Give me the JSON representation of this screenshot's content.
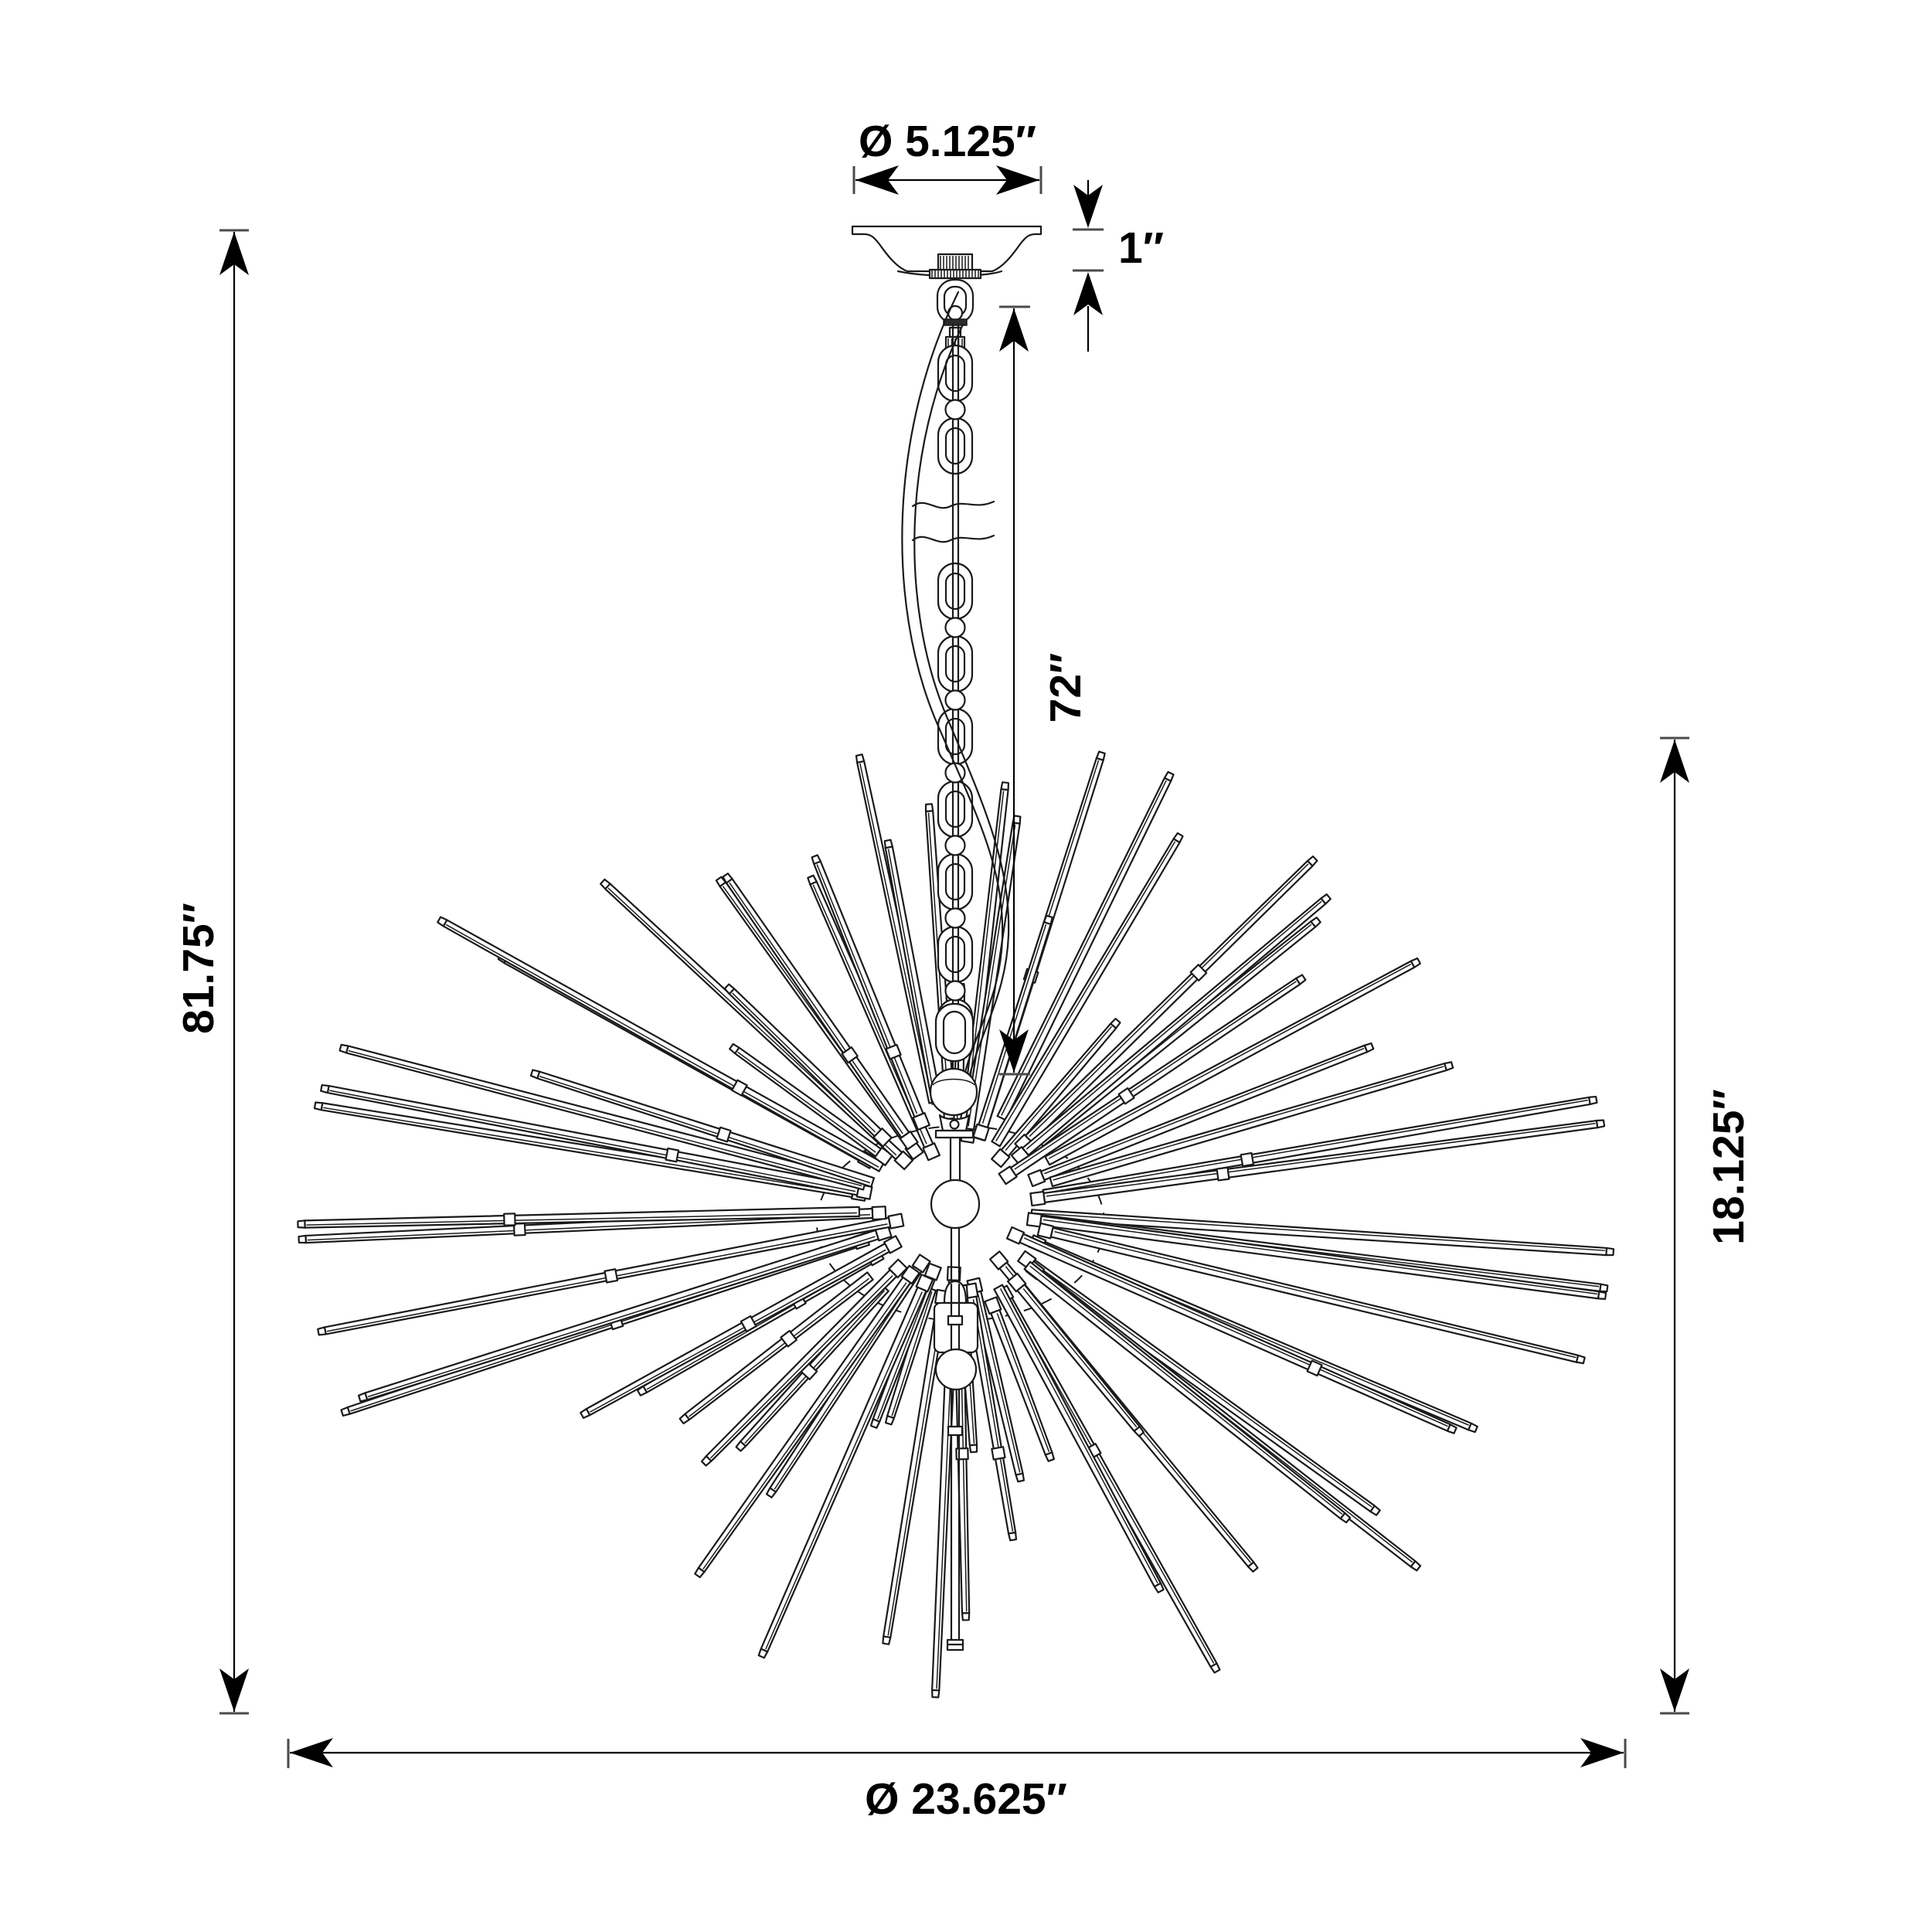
{
  "diagram": {
    "kind": "chandelier-dimension-drawing",
    "background": "#ffffff",
    "line_color": "#1a1a1a",
    "text_color": "#000000"
  },
  "dimensions": {
    "canopy_diameter": "Ø 5.125″",
    "canopy_height": "1″",
    "suspension_length": "72″",
    "overall_height": "81.75″",
    "fixture_height": "18.125″",
    "fixture_diameter": "Ø 23.625″"
  }
}
